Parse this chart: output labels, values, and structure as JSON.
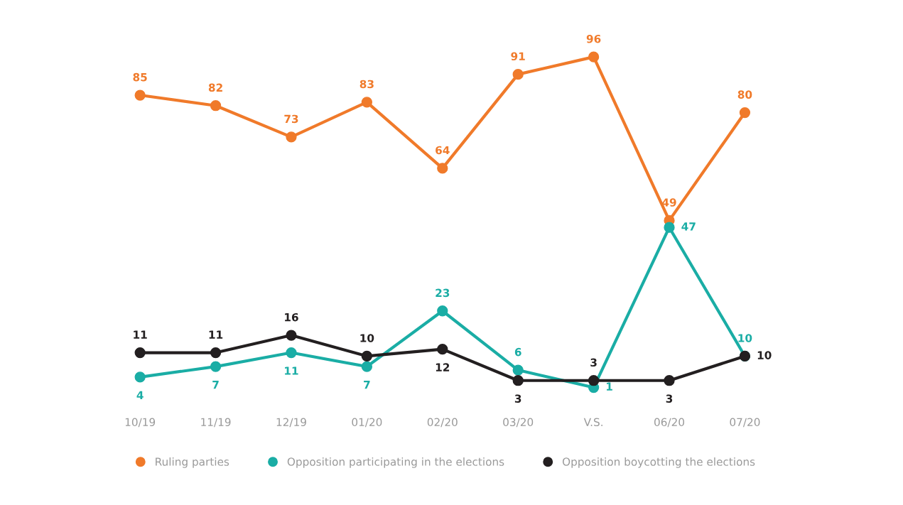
{
  "chart_data": {
    "type": "line",
    "categories": [
      "10/19",
      "11/19",
      "12/19",
      "01/20",
      "02/20",
      "03/20",
      "V.S.",
      "06/20",
      "07/20"
    ],
    "series": [
      {
        "name": "Ruling parties",
        "color": "#f07a2a",
        "values": [
          85,
          82,
          73,
          83,
          64,
          91,
          96,
          49,
          80
        ]
      },
      {
        "name": "Opposition participating in the elections",
        "color": "#1aada5",
        "values": [
          4,
          7,
          11,
          7,
          23,
          6,
          1,
          47,
          10
        ]
      },
      {
        "name": "Opposition boycotting the elections",
        "color": "#231f20",
        "values": [
          11,
          11,
          16,
          10,
          12,
          3,
          3,
          3,
          10
        ]
      }
    ],
    "data_labels": true,
    "legend": "bottom",
    "grid": false,
    "marker": "circle",
    "line_style": "solid"
  }
}
